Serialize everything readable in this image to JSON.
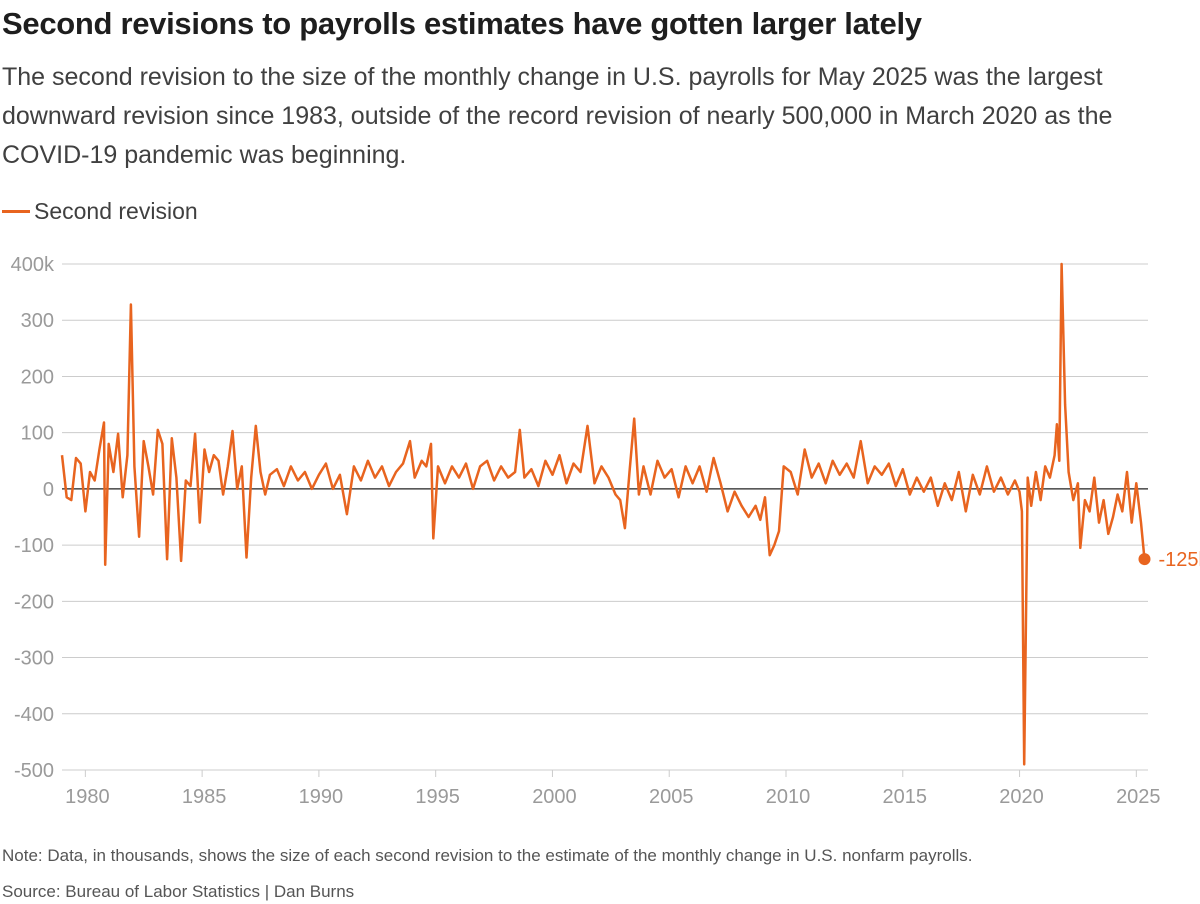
{
  "title": "Second revisions to payrolls estimates have gotten larger lately",
  "subtitle": "The second revision to the size of the monthly change in U.S. payrolls for May 2025 was the largest downward revision since 1983, outside of the record revision of nearly 500,000 in March 2020 as the COVID-19 pandemic was beginning.",
  "legend": {
    "label": "Second revision"
  },
  "note": "Note: Data, in thousands, shows the size of each second revision to the estimate of the monthly change in U.S. nonfarm payrolls.",
  "source": "Source: Bureau of Labor Statistics | Dan Burns",
  "colors": {
    "line": "#e8641f",
    "grid": "#cccccc",
    "zero": "#222222",
    "tick": "#9a9a9a"
  },
  "chart_data": {
    "type": "line",
    "title": "Second revisions to payrolls estimates have gotten larger lately",
    "xlabel": "",
    "ylabel": "",
    "units": "thousands",
    "xlim": [
      1979,
      2025.5
    ],
    "ylim": [
      -500,
      400
    ],
    "y_ticks": [
      400,
      300,
      200,
      100,
      0,
      -100,
      -200,
      -300,
      -400,
      -500
    ],
    "y_tick_labels": [
      "400k",
      "300",
      "200",
      "100",
      "0",
      "-100",
      "-200",
      "-300",
      "-400",
      "-500"
    ],
    "x_ticks": [
      1980,
      1985,
      1990,
      1995,
      2000,
      2005,
      2010,
      2015,
      2020,
      2025
    ],
    "x_tick_labels": [
      "1980",
      "1985",
      "1990",
      "1995",
      "2000",
      "2005",
      "2010",
      "2015",
      "2020",
      "2025"
    ],
    "end_label": "-125k",
    "series": [
      {
        "name": "Second revision",
        "points": [
          [
            1979.0,
            60
          ],
          [
            1979.2,
            -15
          ],
          [
            1979.4,
            -20
          ],
          [
            1979.6,
            55
          ],
          [
            1979.8,
            45
          ],
          [
            1980.0,
            -40
          ],
          [
            1980.2,
            30
          ],
          [
            1980.4,
            15
          ],
          [
            1980.6,
            70
          ],
          [
            1980.8,
            118
          ],
          [
            1980.85,
            -135
          ],
          [
            1981.0,
            80
          ],
          [
            1981.2,
            30
          ],
          [
            1981.4,
            98
          ],
          [
            1981.6,
            -15
          ],
          [
            1981.8,
            60
          ],
          [
            1981.95,
            328
          ],
          [
            1982.1,
            40
          ],
          [
            1982.3,
            -85
          ],
          [
            1982.5,
            85
          ],
          [
            1982.7,
            40
          ],
          [
            1982.9,
            -10
          ],
          [
            1983.1,
            105
          ],
          [
            1983.3,
            80
          ],
          [
            1983.5,
            -125
          ],
          [
            1983.7,
            90
          ],
          [
            1983.9,
            20
          ],
          [
            1984.1,
            -128
          ],
          [
            1984.3,
            15
          ],
          [
            1984.5,
            5
          ],
          [
            1984.7,
            98
          ],
          [
            1984.9,
            -60
          ],
          [
            1985.1,
            70
          ],
          [
            1985.3,
            30
          ],
          [
            1985.5,
            60
          ],
          [
            1985.7,
            50
          ],
          [
            1985.9,
            -10
          ],
          [
            1986.1,
            40
          ],
          [
            1986.3,
            103
          ],
          [
            1986.5,
            0
          ],
          [
            1986.7,
            40
          ],
          [
            1986.9,
            -122
          ],
          [
            1987.1,
            20
          ],
          [
            1987.3,
            112
          ],
          [
            1987.5,
            30
          ],
          [
            1987.7,
            -10
          ],
          [
            1987.9,
            25
          ],
          [
            1988.2,
            35
          ],
          [
            1988.5,
            5
          ],
          [
            1988.8,
            40
          ],
          [
            1989.1,
            15
          ],
          [
            1989.4,
            30
          ],
          [
            1989.7,
            0
          ],
          [
            1990.0,
            25
          ],
          [
            1990.3,
            45
          ],
          [
            1990.6,
            0
          ],
          [
            1990.9,
            25
          ],
          [
            1991.2,
            -45
          ],
          [
            1991.5,
            40
          ],
          [
            1991.8,
            15
          ],
          [
            1992.1,
            50
          ],
          [
            1992.4,
            20
          ],
          [
            1992.7,
            40
          ],
          [
            1993.0,
            5
          ],
          [
            1993.3,
            30
          ],
          [
            1993.6,
            45
          ],
          [
            1993.9,
            85
          ],
          [
            1994.1,
            20
          ],
          [
            1994.4,
            50
          ],
          [
            1994.6,
            40
          ],
          [
            1994.8,
            80
          ],
          [
            1994.9,
            -88
          ],
          [
            1995.1,
            40
          ],
          [
            1995.4,
            10
          ],
          [
            1995.7,
            40
          ],
          [
            1996.0,
            20
          ],
          [
            1996.3,
            45
          ],
          [
            1996.6,
            0
          ],
          [
            1996.9,
            40
          ],
          [
            1997.2,
            50
          ],
          [
            1997.5,
            15
          ],
          [
            1997.8,
            40
          ],
          [
            1998.1,
            20
          ],
          [
            1998.4,
            30
          ],
          [
            1998.6,
            105
          ],
          [
            1998.8,
            20
          ],
          [
            1999.1,
            35
          ],
          [
            1999.4,
            5
          ],
          [
            1999.7,
            50
          ],
          [
            2000.0,
            25
          ],
          [
            2000.3,
            60
          ],
          [
            2000.6,
            10
          ],
          [
            2000.9,
            45
          ],
          [
            2001.2,
            30
          ],
          [
            2001.5,
            112
          ],
          [
            2001.8,
            10
          ],
          [
            2002.1,
            40
          ],
          [
            2002.4,
            20
          ],
          [
            2002.7,
            -10
          ],
          [
            2002.9,
            -20
          ],
          [
            2003.1,
            -70
          ],
          [
            2003.3,
            30
          ],
          [
            2003.5,
            125
          ],
          [
            2003.7,
            -10
          ],
          [
            2003.9,
            40
          ],
          [
            2004.2,
            -10
          ],
          [
            2004.5,
            50
          ],
          [
            2004.8,
            20
          ],
          [
            2005.1,
            35
          ],
          [
            2005.4,
            -15
          ],
          [
            2005.7,
            40
          ],
          [
            2006.0,
            10
          ],
          [
            2006.3,
            40
          ],
          [
            2006.6,
            -5
          ],
          [
            2006.9,
            55
          ],
          [
            2007.2,
            10
          ],
          [
            2007.5,
            -40
          ],
          [
            2007.8,
            -5
          ],
          [
            2008.1,
            -30
          ],
          [
            2008.4,
            -50
          ],
          [
            2008.7,
            -30
          ],
          [
            2008.9,
            -55
          ],
          [
            2009.1,
            -15
          ],
          [
            2009.3,
            -118
          ],
          [
            2009.5,
            -100
          ],
          [
            2009.7,
            -75
          ],
          [
            2009.9,
            40
          ],
          [
            2010.2,
            30
          ],
          [
            2010.5,
            -10
          ],
          [
            2010.8,
            70
          ],
          [
            2011.1,
            20
          ],
          [
            2011.4,
            45
          ],
          [
            2011.7,
            10
          ],
          [
            2012.0,
            50
          ],
          [
            2012.3,
            25
          ],
          [
            2012.6,
            45
          ],
          [
            2012.9,
            20
          ],
          [
            2013.2,
            85
          ],
          [
            2013.5,
            10
          ],
          [
            2013.8,
            40
          ],
          [
            2014.1,
            25
          ],
          [
            2014.4,
            45
          ],
          [
            2014.7,
            5
          ],
          [
            2015.0,
            35
          ],
          [
            2015.3,
            -10
          ],
          [
            2015.6,
            20
          ],
          [
            2015.9,
            -5
          ],
          [
            2016.2,
            20
          ],
          [
            2016.5,
            -30
          ],
          [
            2016.8,
            10
          ],
          [
            2017.1,
            -20
          ],
          [
            2017.4,
            30
          ],
          [
            2017.7,
            -40
          ],
          [
            2018.0,
            25
          ],
          [
            2018.3,
            -10
          ],
          [
            2018.6,
            40
          ],
          [
            2018.9,
            -5
          ],
          [
            2019.2,
            20
          ],
          [
            2019.5,
            -10
          ],
          [
            2019.8,
            15
          ],
          [
            2020.0,
            -5
          ],
          [
            2020.1,
            -40
          ],
          [
            2020.2,
            -490
          ],
          [
            2020.35,
            20
          ],
          [
            2020.5,
            -30
          ],
          [
            2020.7,
            30
          ],
          [
            2020.9,
            -20
          ],
          [
            2021.1,
            40
          ],
          [
            2021.3,
            20
          ],
          [
            2021.5,
            60
          ],
          [
            2021.6,
            115
          ],
          [
            2021.7,
            50
          ],
          [
            2021.8,
            400
          ],
          [
            2021.95,
            150
          ],
          [
            2022.1,
            30
          ],
          [
            2022.3,
            -20
          ],
          [
            2022.5,
            10
          ],
          [
            2022.6,
            -105
          ],
          [
            2022.8,
            -20
          ],
          [
            2023.0,
            -40
          ],
          [
            2023.2,
            20
          ],
          [
            2023.4,
            -60
          ],
          [
            2023.6,
            -20
          ],
          [
            2023.8,
            -80
          ],
          [
            2024.0,
            -50
          ],
          [
            2024.2,
            -10
          ],
          [
            2024.4,
            -40
          ],
          [
            2024.6,
            30
          ],
          [
            2024.8,
            -60
          ],
          [
            2025.0,
            10
          ],
          [
            2025.2,
            -60
          ],
          [
            2025.35,
            -125
          ]
        ]
      }
    ]
  }
}
